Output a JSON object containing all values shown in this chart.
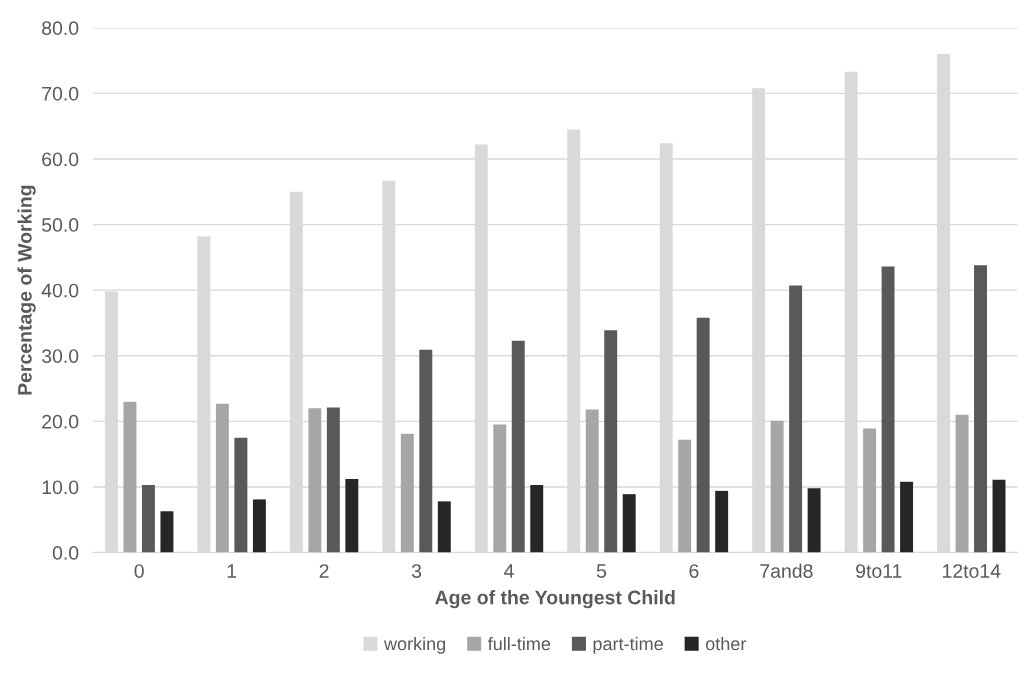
{
  "chart_data": {
    "type": "bar",
    "xlabel": "Age of the Youngest Child",
    "ylabel": "Percentage of Working",
    "categories": [
      "0",
      "1",
      "2",
      "3",
      "4",
      "5",
      "6",
      "7and8",
      "9to11",
      "12to14"
    ],
    "series": [
      {
        "name": "working",
        "color": "#d9d9d9",
        "values": [
          39.8,
          48.2,
          55.0,
          56.7,
          62.2,
          64.5,
          62.4,
          70.8,
          73.3,
          76.0
        ]
      },
      {
        "name": "full-time",
        "color": "#a6a6a6",
        "values": [
          23.0,
          22.7,
          22.0,
          18.1,
          19.5,
          21.8,
          17.2,
          20.1,
          18.9,
          21.0
        ]
      },
      {
        "name": "part-time",
        "color": "#595959",
        "values": [
          10.3,
          17.5,
          22.1,
          30.9,
          32.3,
          33.9,
          35.8,
          40.7,
          43.6,
          43.8
        ]
      },
      {
        "name": "other",
        "color": "#262626",
        "values": [
          6.3,
          8.1,
          11.2,
          7.8,
          10.3,
          8.9,
          9.4,
          9.8,
          10.8,
          11.1
        ]
      }
    ],
    "ylim": [
      0,
      80
    ],
    "yticks": [
      {
        "value": 0,
        "label": "0.0"
      },
      {
        "value": 10,
        "label": "10.0"
      },
      {
        "value": 20,
        "label": "20.0"
      },
      {
        "value": 30,
        "label": "30.0"
      },
      {
        "value": 40,
        "label": "40.0"
      },
      {
        "value": 50,
        "label": "50.0"
      },
      {
        "value": 60,
        "label": "60.0"
      },
      {
        "value": 70,
        "label": "70.0"
      },
      {
        "value": 80,
        "label": "80.0"
      }
    ],
    "grid": "y",
    "legend": "bottom"
  }
}
